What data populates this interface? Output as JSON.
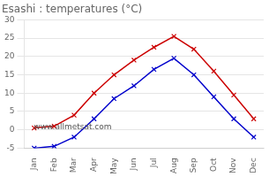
{
  "chart_data": {
    "type": "line",
    "title": "Esashi : temperatures (°C)",
    "categories": [
      "Jan",
      "Feb",
      "Mar",
      "Apr",
      "May",
      "Jun",
      "Jul",
      "Aug",
      "Sep",
      "Oct",
      "Nov",
      "Dec"
    ],
    "series": [
      {
        "color": "#cc0000",
        "values": [
          0.5,
          1.0,
          4.0,
          10.0,
          15.0,
          19.0,
          22.5,
          25.5,
          22.0,
          16.0,
          9.5,
          3.0
        ]
      },
      {
        "color": "#0000cc",
        "values": [
          -5.0,
          -4.5,
          -2.0,
          3.0,
          8.5,
          12.0,
          16.5,
          19.5,
          15.0,
          9.0,
          3.0,
          -2.0
        ]
      }
    ],
    "ylim": [
      -5,
      30
    ],
    "yticks": [
      -5,
      0,
      5,
      10,
      15,
      20,
      25,
      30
    ],
    "grid": "y",
    "marker": "x",
    "annotations": [
      "www.allmetsat.com"
    ]
  }
}
